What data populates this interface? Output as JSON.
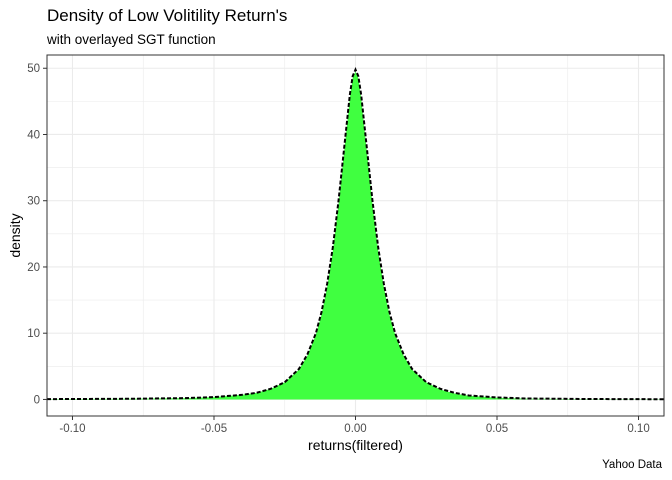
{
  "title": "Density of Low Volitility Return's",
  "subtitle": "with overlayed SGT function",
  "caption": "Yahoo Data",
  "colors": {
    "fill": "#40ff40",
    "line": "#000000",
    "grid": "#ebebeb",
    "panel_border": "#333333",
    "tick_text": "#4d4d4d"
  },
  "chart_data": {
    "type": "area",
    "xlabel": "returns(filtered)",
    "ylabel": "density",
    "xlim": [
      -0.109,
      0.109
    ],
    "ylim": [
      -2.5,
      52
    ],
    "x_ticks": [
      -0.1,
      -0.05,
      0.0,
      0.05,
      0.1
    ],
    "x_tick_labels": [
      "-0.10",
      "-0.05",
      "0.00",
      "0.05",
      "0.10"
    ],
    "y_ticks": [
      0,
      10,
      20,
      30,
      40,
      50
    ],
    "y_tick_labels": [
      "0",
      "10",
      "20",
      "30",
      "40",
      "50"
    ],
    "grid": true,
    "series": [
      {
        "kind": "filled-density",
        "x": [
          -0.109,
          -0.08,
          -0.06,
          -0.05,
          -0.04,
          -0.035,
          -0.03,
          -0.025,
          -0.02,
          -0.017,
          -0.014,
          -0.012,
          -0.01,
          -0.008,
          -0.006,
          -0.004,
          -0.003,
          -0.002,
          -0.001,
          0.0,
          0.001,
          0.002,
          0.003,
          0.004,
          0.006,
          0.008,
          0.01,
          0.012,
          0.014,
          0.017,
          0.02,
          0.025,
          0.03,
          0.035,
          0.04,
          0.05,
          0.06,
          0.08,
          0.109
        ],
        "y": [
          0.05,
          0.1,
          0.2,
          0.35,
          0.7,
          1.0,
          1.6,
          2.6,
          4.5,
          6.6,
          9.8,
          12.8,
          17.0,
          22.5,
          29.5,
          37.5,
          41.5,
          45.5,
          48.5,
          49.5,
          48.5,
          45.5,
          41.5,
          37.5,
          29.5,
          22.5,
          17.0,
          12.8,
          9.8,
          6.6,
          4.5,
          2.6,
          1.5,
          0.9,
          0.55,
          0.25,
          0.12,
          0.05,
          0.02
        ]
      },
      {
        "kind": "dashed-line",
        "x": [
          -0.109,
          -0.08,
          -0.06,
          -0.05,
          -0.04,
          -0.035,
          -0.03,
          -0.025,
          -0.02,
          -0.017,
          -0.014,
          -0.012,
          -0.01,
          -0.008,
          -0.006,
          -0.004,
          -0.003,
          -0.002,
          -0.001,
          0.0,
          0.001,
          0.002,
          0.003,
          0.004,
          0.006,
          0.008,
          0.01,
          0.012,
          0.014,
          0.017,
          0.02,
          0.025,
          0.03,
          0.035,
          0.04,
          0.05,
          0.06,
          0.08,
          0.109
        ],
        "y": [
          0.05,
          0.1,
          0.2,
          0.35,
          0.7,
          1.0,
          1.6,
          2.6,
          4.6,
          6.8,
          10.0,
          13.2,
          17.5,
          23.0,
          30.0,
          38.0,
          42.0,
          46.0,
          48.8,
          49.8,
          48.8,
          46.0,
          42.0,
          38.0,
          30.0,
          23.0,
          17.5,
          13.2,
          10.0,
          6.8,
          4.6,
          2.6,
          1.6,
          1.0,
          0.6,
          0.3,
          0.15,
          0.07,
          0.03
        ]
      }
    ]
  }
}
